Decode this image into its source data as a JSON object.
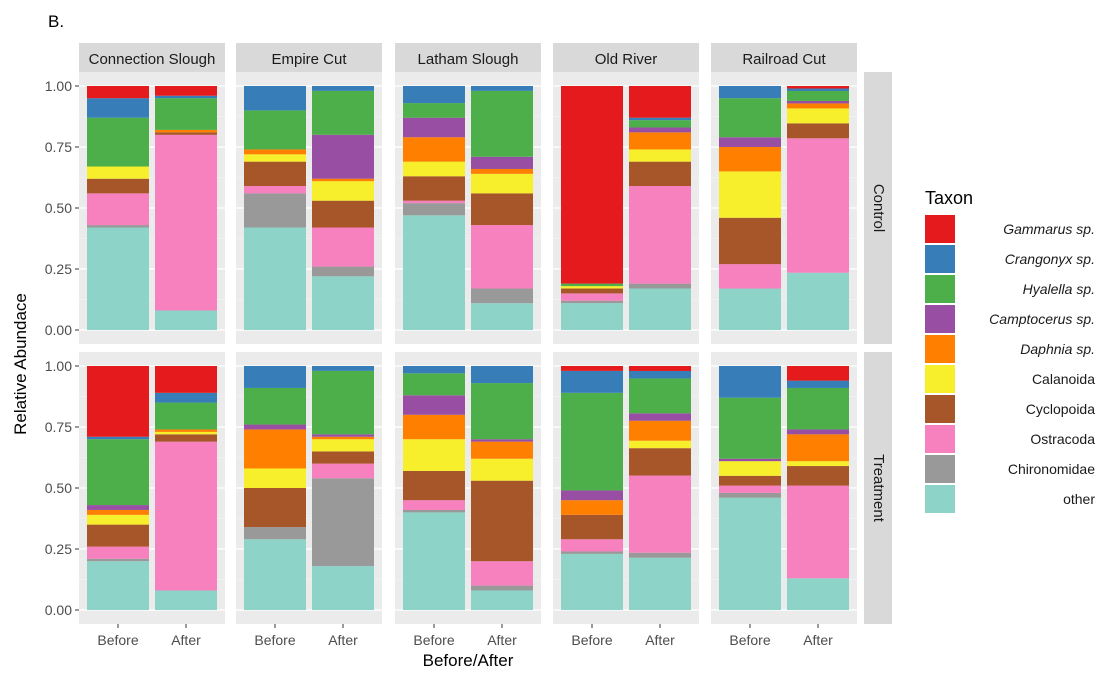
{
  "figure_label": "B.",
  "chart_data": {
    "type": "bar",
    "stacked": true,
    "facet_columns": [
      "Connection Slough",
      "Empire Cut",
      "Latham Slough",
      "Old River",
      "Railroad Cut"
    ],
    "facet_rows": [
      "Control",
      "Treatment"
    ],
    "categories": [
      "Before",
      "After"
    ],
    "xlabel": "Before/After",
    "ylabel": "Relative Abundace",
    "ylim": [
      0,
      1
    ],
    "yticks": [
      "0.00",
      "0.25",
      "0.50",
      "0.75",
      "1.00"
    ],
    "legend_title": "Taxon",
    "legend_position": "right",
    "taxa": [
      {
        "name": "Gammarus sp.",
        "color": "#e41a1c",
        "italic": true
      },
      {
        "name": "Crangonyx sp.",
        "color": "#377eb8",
        "italic": true
      },
      {
        "name": "Hyalella sp.",
        "color": "#4daf4a",
        "italic": true
      },
      {
        "name": "Camptocerus sp.",
        "color": "#984ea3",
        "italic": true
      },
      {
        "name": "Daphnia sp.",
        "color": "#ff7f00",
        "italic": true
      },
      {
        "name": "Calanoida",
        "color": "#f7ef2b",
        "italic": false
      },
      {
        "name": "Cyclopoida",
        "color": "#a65628",
        "italic": false
      },
      {
        "name": "Ostracoda",
        "color": "#f781bf",
        "italic": false
      },
      {
        "name": "Chironomidae",
        "color": "#999999",
        "italic": false
      },
      {
        "name": "other",
        "color": "#8dd3c7",
        "italic": false
      }
    ],
    "panels": {
      "Control": {
        "Connection Slough": {
          "Before": [
            0.05,
            0.08,
            0.2,
            0.0,
            0.0,
            0.05,
            0.06,
            0.13,
            0.01,
            0.42
          ],
          "After": [
            0.04,
            0.01,
            0.13,
            0.0,
            0.01,
            0.0,
            0.01,
            0.72,
            0.0,
            0.08
          ]
        },
        "Empire Cut": {
          "Before": [
            0.0,
            0.1,
            0.16,
            0.0,
            0.02,
            0.03,
            0.1,
            0.03,
            0.14,
            0.42
          ],
          "After": [
            0.0,
            0.02,
            0.18,
            0.18,
            0.01,
            0.08,
            0.11,
            0.16,
            0.04,
            0.22
          ]
        },
        "Latham Slough": {
          "Before": [
            0.0,
            0.07,
            0.06,
            0.08,
            0.1,
            0.06,
            0.1,
            0.01,
            0.05,
            0.47
          ],
          "After": [
            0.0,
            0.02,
            0.27,
            0.05,
            0.02,
            0.08,
            0.13,
            0.26,
            0.06,
            0.11
          ]
        },
        "Old River": {
          "Before": [
            0.81,
            0.0,
            0.01,
            0.0,
            0.0,
            0.01,
            0.02,
            0.03,
            0.01,
            0.11
          ],
          "After": [
            0.13,
            0.01,
            0.03,
            0.02,
            0.07,
            0.05,
            0.1,
            0.4,
            0.02,
            0.17
          ]
        },
        "Railroad Cut": {
          "Before": [
            0.0,
            0.05,
            0.16,
            0.04,
            0.1,
            0.19,
            0.19,
            0.1,
            0.0,
            0.17
          ],
          "After": [
            0.01,
            0.01,
            0.04,
            0.01,
            0.02,
            0.06,
            0.06,
            0.54,
            0.0,
            0.23
          ]
        }
      },
      "Treatment": {
        "Connection Slough": {
          "Before": [
            0.29,
            0.01,
            0.27,
            0.02,
            0.02,
            0.04,
            0.09,
            0.05,
            0.01,
            0.2
          ],
          "After": [
            0.11,
            0.04,
            0.11,
            0.0,
            0.01,
            0.01,
            0.03,
            0.61,
            0.0,
            0.08
          ]
        },
        "Empire Cut": {
          "Before": [
            0.0,
            0.09,
            0.15,
            0.02,
            0.16,
            0.08,
            0.16,
            0.0,
            0.05,
            0.29
          ],
          "After": [
            0.0,
            0.02,
            0.26,
            0.01,
            0.01,
            0.05,
            0.05,
            0.06,
            0.36,
            0.18
          ]
        },
        "Latham Slough": {
          "Before": [
            0.0,
            0.03,
            0.09,
            0.08,
            0.1,
            0.13,
            0.12,
            0.04,
            0.01,
            0.4
          ],
          "After": [
            0.0,
            0.07,
            0.23,
            0.01,
            0.07,
            0.09,
            0.33,
            0.1,
            0.02,
            0.08
          ]
        },
        "Old River": {
          "Before": [
            0.02,
            0.09,
            0.4,
            0.04,
            0.06,
            0.0,
            0.1,
            0.05,
            0.01,
            0.23
          ],
          "After": [
            0.02,
            0.03,
            0.14,
            0.03,
            0.08,
            0.03,
            0.11,
            0.31,
            0.02,
            0.21
          ]
        },
        "Railroad Cut": {
          "Before": [
            0.0,
            0.13,
            0.25,
            0.01,
            0.0,
            0.06,
            0.04,
            0.03,
            0.02,
            0.46
          ],
          "After": [
            0.06,
            0.03,
            0.17,
            0.02,
            0.11,
            0.02,
            0.08,
            0.38,
            0.0,
            0.13
          ]
        }
      }
    }
  }
}
